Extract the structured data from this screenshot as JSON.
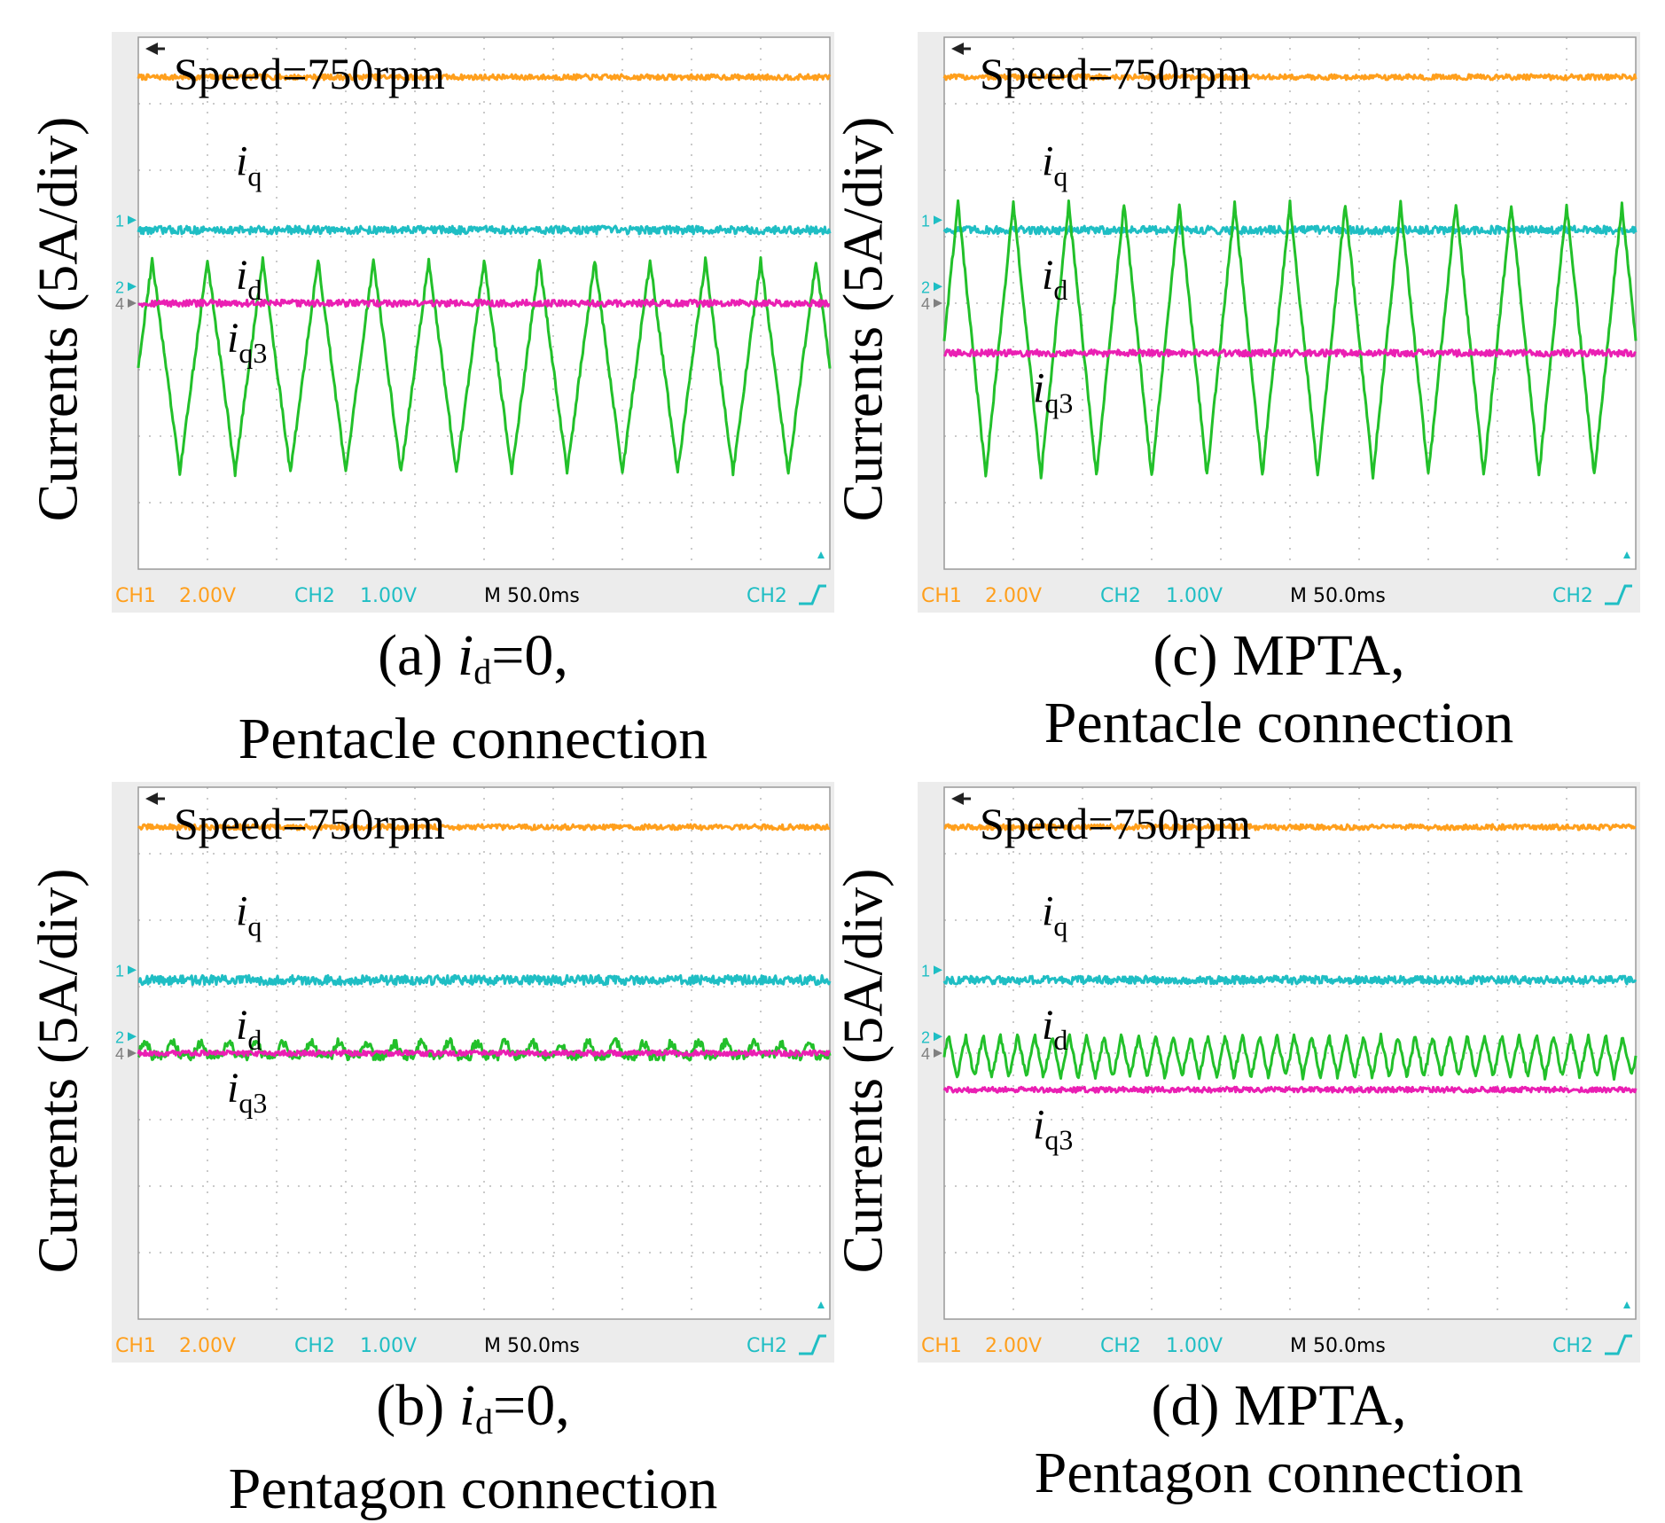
{
  "colors": {
    "ch1": "#ff9f1c",
    "ch2": "#1fbec4",
    "ch3": "#22c02a",
    "ch4": "#ea1fb3",
    "screen_bg": "#ffffff",
    "gutter_bg": "#ececec",
    "grid": "#b8b8b8",
    "readout": "#000000"
  },
  "chart_data": [
    {
      "id": "a",
      "type": "line",
      "ylabel": "Currents (5A/div)",
      "caption_prefix": "(a) ",
      "caption_var": "i",
      "caption_sub": "d",
      "caption_suffix": "=0,",
      "caption_line2": "Pentacle connection",
      "annotation_speed": "Speed=750rpm",
      "labels": [
        {
          "main": "i",
          "sub": "q"
        },
        {
          "main": "i",
          "sub": "d"
        },
        {
          "main": "i",
          "sub": "q3"
        }
      ],
      "scope": {
        "ch1_label": "CH1",
        "ch1_scale": "2.00V",
        "ch2_label": "CH2",
        "ch2_scale": "1.00V",
        "timebase": "M 50.0ms",
        "trigger": "CH2",
        "markers": [
          "1",
          "2",
          "4"
        ]
      },
      "xlim": [
        0,
        500
      ],
      "ylim": [
        -4,
        4
      ],
      "series": [
        {
          "channel": "ch1",
          "shape": "flat",
          "level": 3.4,
          "noise": 0.04
        },
        {
          "channel": "ch2",
          "shape": "flat",
          "level": 1.1,
          "noise": 0.06
        },
        {
          "channel": "ch3",
          "shape": "triangle",
          "center": -0.95,
          "amplitude": 1.6,
          "cycles": 12.5,
          "noise": 0.05
        },
        {
          "channel": "ch4",
          "shape": "flat",
          "level": 0.0,
          "noise": 0.05
        }
      ]
    },
    {
      "id": "c",
      "type": "line",
      "ylabel": "Currents (5A/div)",
      "caption_prefix": "(c) MPTA,",
      "caption_var": "",
      "caption_sub": "",
      "caption_suffix": "",
      "caption_line2": "Pentacle connection",
      "annotation_speed": "Speed=750rpm",
      "labels": [
        {
          "main": "i",
          "sub": "q"
        },
        {
          "main": "i",
          "sub": "d"
        },
        {
          "main": "i",
          "sub": "q3"
        }
      ],
      "scope": {
        "ch1_label": "CH1",
        "ch1_scale": "2.00V",
        "ch2_label": "CH2",
        "ch2_scale": "1.00V",
        "timebase": "M 50.0ms",
        "trigger": "CH2",
        "markers": [
          "1",
          "2",
          "4"
        ]
      },
      "xlim": [
        0,
        500
      ],
      "ylim": [
        -4,
        4
      ],
      "series": [
        {
          "channel": "ch1",
          "shape": "flat",
          "level": 3.4,
          "noise": 0.04
        },
        {
          "channel": "ch2",
          "shape": "flat",
          "level": 1.1,
          "noise": 0.06
        },
        {
          "channel": "ch3",
          "shape": "triangle",
          "center": -0.55,
          "amplitude": 2.05,
          "cycles": 12.5,
          "noise": 0.05
        },
        {
          "channel": "ch4",
          "shape": "flat",
          "level": -0.75,
          "noise": 0.05
        }
      ]
    },
    {
      "id": "b",
      "type": "line",
      "ylabel": "Currents (5A/div)",
      "caption_prefix": "(b) ",
      "caption_var": "i",
      "caption_sub": "d",
      "caption_suffix": "=0,",
      "caption_line2": "Pentagon connection",
      "annotation_speed": "Speed=750rpm",
      "labels": [
        {
          "main": "i",
          "sub": "q"
        },
        {
          "main": "i",
          "sub": "d"
        },
        {
          "main": "i",
          "sub": "q3"
        }
      ],
      "scope": {
        "ch1_label": "CH1",
        "ch1_scale": "2.00V",
        "ch2_label": "CH2",
        "ch2_scale": "1.00V",
        "timebase": "M 50.0ms",
        "trigger": "CH2",
        "markers": [
          "1",
          "2",
          "4"
        ]
      },
      "xlim": [
        0,
        500
      ],
      "ylim": [
        -4,
        4
      ],
      "series": [
        {
          "channel": "ch1",
          "shape": "flat",
          "level": 3.4,
          "noise": 0.04
        },
        {
          "channel": "ch2",
          "shape": "flat",
          "level": 1.1,
          "noise": 0.07
        },
        {
          "channel": "ch3",
          "shape": "ripple",
          "center": 0.0,
          "amplitude": 0.12,
          "cycles": 25,
          "noise": 0.07
        },
        {
          "channel": "ch4",
          "shape": "flat",
          "level": 0.0,
          "noise": 0.04
        }
      ]
    },
    {
      "id": "d",
      "type": "line",
      "ylabel": "Currents (5A/div)",
      "caption_prefix": "(d) MPTA,",
      "caption_var": "",
      "caption_sub": "",
      "caption_suffix": "",
      "caption_line2": "Pentagon connection",
      "annotation_speed": "Speed=750rpm",
      "labels": [
        {
          "main": "i",
          "sub": "q"
        },
        {
          "main": "i",
          "sub": "d"
        },
        {
          "main": "i",
          "sub": "q3"
        }
      ],
      "scope": {
        "ch1_label": "CH1",
        "ch1_scale": "2.00V",
        "ch2_label": "CH2",
        "ch2_scale": "1.00V",
        "timebase": "M 50.0ms",
        "trigger": "CH2",
        "markers": [
          "1",
          "2",
          "4"
        ]
      },
      "xlim": [
        0,
        500
      ],
      "ylim": [
        -4,
        4
      ],
      "series": [
        {
          "channel": "ch1",
          "shape": "flat",
          "level": 3.4,
          "noise": 0.04
        },
        {
          "channel": "ch2",
          "shape": "flat",
          "level": 1.1,
          "noise": 0.06
        },
        {
          "channel": "ch3",
          "shape": "triangle",
          "center": -0.05,
          "amplitude": 0.32,
          "cycles": 40,
          "noise": 0.04
        },
        {
          "channel": "ch4",
          "shape": "flat",
          "level": -0.55,
          "noise": 0.04
        }
      ]
    }
  ]
}
